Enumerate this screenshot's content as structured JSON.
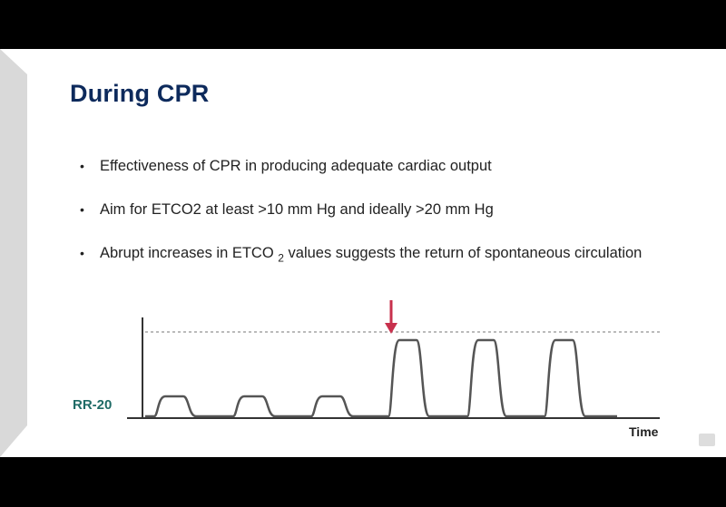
{
  "slide": {
    "title": "During CPR",
    "bullets": [
      {
        "text": "Effectiveness of CPR in producing adequate cardiac output"
      },
      {
        "text": "Aim for ETCO2 at least >10 mm Hg and ideally >20 mm Hg"
      },
      {
        "text_before": "Abrupt increases in ETCO ",
        "sub": "2",
        "text_after": " values suggests the return of spontaneous circulation"
      }
    ]
  },
  "chart_data": {
    "type": "line",
    "y_label": "RR-20",
    "x_label": "Time",
    "description_marks": {
      "low_plateaus": 3,
      "high_plateaus": 3,
      "arrow": true,
      "dashed_reference_line": true
    }
  },
  "colors": {
    "title": "#0d2a5c",
    "ylabel": "#1f6b66",
    "arrow": "#c8314d",
    "trace": "#555555"
  },
  "icons": {
    "bullet": "bullet-dot",
    "logo": "heart-logo-icon"
  }
}
